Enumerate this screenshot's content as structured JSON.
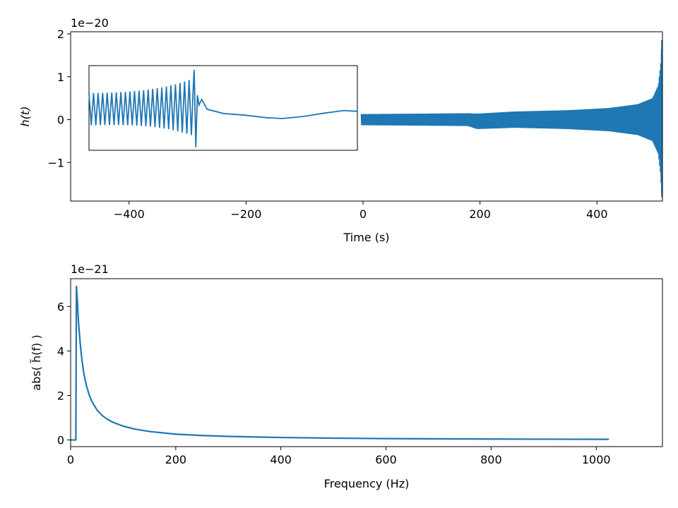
{
  "chart_data": [
    {
      "type": "line",
      "title": "",
      "xlabel": "Time (s)",
      "ylabel": "h(t)",
      "y_offset_label": "1e−20",
      "xlim": [
        -500,
        512
      ],
      "ylim": [
        -1.9,
        2.05
      ],
      "xticks": [
        {
          "value": -400,
          "label": "−400"
        },
        {
          "value": -200,
          "label": "−200"
        },
        {
          "value": 0,
          "label": "0"
        },
        {
          "value": 200,
          "label": "200"
        },
        {
          "value": 400,
          "label": "400"
        }
      ],
      "yticks": [
        {
          "value": -1,
          "label": "−1"
        },
        {
          "value": 0,
          "label": "0"
        },
        {
          "value": 1,
          "label": "1"
        },
        {
          "value": 2,
          "label": "2"
        }
      ],
      "grid": false,
      "series": [
        {
          "color": "#1f77b4",
          "x_range": [
            -3,
            512
          ],
          "envelope": [
            {
              "t": -3,
              "amp": 0.13
            },
            {
              "t": 100,
              "amp": 0.14
            },
            {
              "t": 180,
              "amp": 0.15
            },
            {
              "t": 195,
              "amp": 0.18,
              "offset": -0.04
            },
            {
              "t": 260,
              "amp": 0.19
            },
            {
              "t": 350,
              "amp": 0.22
            },
            {
              "t": 420,
              "amp": 0.27
            },
            {
              "t": 470,
              "amp": 0.36
            },
            {
              "t": 495,
              "amp": 0.5
            },
            {
              "t": 505,
              "amp": 0.8
            },
            {
              "t": 509,
              "amp": 1.3
            },
            {
              "t": 511,
              "amp": 1.85
            }
          ]
        }
      ],
      "inset": {
        "type": "line",
        "description_of_signal": "zoom on merger-ringdown",
        "samples": [
          {
            "x": 0.0,
            "y": 0.55
          },
          {
            "x": 0.02,
            "y": -0.15
          },
          {
            "x": 0.04,
            "y": 0.58
          },
          {
            "x": 0.06,
            "y": -0.16
          },
          {
            "x": 0.08,
            "y": 0.6
          },
          {
            "x": 0.1,
            "y": -0.17
          },
          {
            "x": 0.12,
            "y": 0.62
          },
          {
            "x": 0.14,
            "y": -0.18
          },
          {
            "x": 0.16,
            "y": 0.64
          },
          {
            "x": 0.18,
            "y": -0.2
          },
          {
            "x": 0.2,
            "y": 0.66
          },
          {
            "x": 0.22,
            "y": -0.22
          },
          {
            "x": 0.24,
            "y": 0.68
          },
          {
            "x": 0.26,
            "y": -0.25
          },
          {
            "x": 0.28,
            "y": 0.72
          },
          {
            "x": 0.3,
            "y": -0.3
          },
          {
            "x": 0.32,
            "y": 0.8
          },
          {
            "x": 0.34,
            "y": -0.36
          },
          {
            "x": 0.355,
            "y": 0.9
          },
          {
            "x": 0.37,
            "y": -0.45
          },
          {
            "x": 0.38,
            "y": 1.0
          },
          {
            "x": 0.39,
            "y": -0.6
          },
          {
            "x": 0.4,
            "y": 0.3
          },
          {
            "x": 0.41,
            "y": 0.55
          },
          {
            "x": 0.42,
            "y": 0.25
          },
          {
            "x": 0.45,
            "y": 0.15
          },
          {
            "x": 0.55,
            "y": 0.1
          },
          {
            "x": 0.65,
            "y": 0.04
          },
          {
            "x": 0.75,
            "y": 0.0
          },
          {
            "x": 0.85,
            "y": 0.07
          },
          {
            "x": 0.95,
            "y": 0.18
          },
          {
            "x": 1.0,
            "y": 0.2
          }
        ],
        "ylim": [
          -0.75,
          1.25
        ]
      }
    },
    {
      "type": "line",
      "title": "",
      "xlabel": "Frequency (Hz)",
      "ylabel": "abs( h̃(f) )",
      "y_offset_label": "1e−21",
      "xlim": [
        0,
        1126
      ],
      "ylim": [
        -0.3,
        7.25
      ],
      "xticks": [
        {
          "value": 0,
          "label": "0"
        },
        {
          "value": 200,
          "label": "200"
        },
        {
          "value": 400,
          "label": "400"
        },
        {
          "value": 600,
          "label": "600"
        },
        {
          "value": 800,
          "label": "800"
        },
        {
          "value": 1000,
          "label": "1000"
        }
      ],
      "yticks": [
        {
          "value": 0,
          "label": "0"
        },
        {
          "value": 2,
          "label": "2"
        },
        {
          "value": 4,
          "label": "4"
        },
        {
          "value": 6,
          "label": "6"
        }
      ],
      "grid": false,
      "series": [
        {
          "color": "#1f77b4",
          "x": [
            0,
            10,
            10,
            11,
            13,
            15,
            18,
            21,
            25,
            30,
            35,
            40,
            50,
            60,
            70,
            80,
            100,
            120,
            150,
            200,
            250,
            300,
            400,
            500,
            600,
            700,
            800,
            900,
            1024
          ],
          "y": [
            0,
            0,
            0.3,
            6.9,
            6.2,
            5.3,
            4.4,
            3.7,
            3.0,
            2.45,
            2.05,
            1.75,
            1.35,
            1.1,
            0.93,
            0.8,
            0.62,
            0.5,
            0.38,
            0.26,
            0.2,
            0.16,
            0.11,
            0.08,
            0.06,
            0.05,
            0.04,
            0.035,
            0.03
          ]
        }
      ]
    }
  ]
}
